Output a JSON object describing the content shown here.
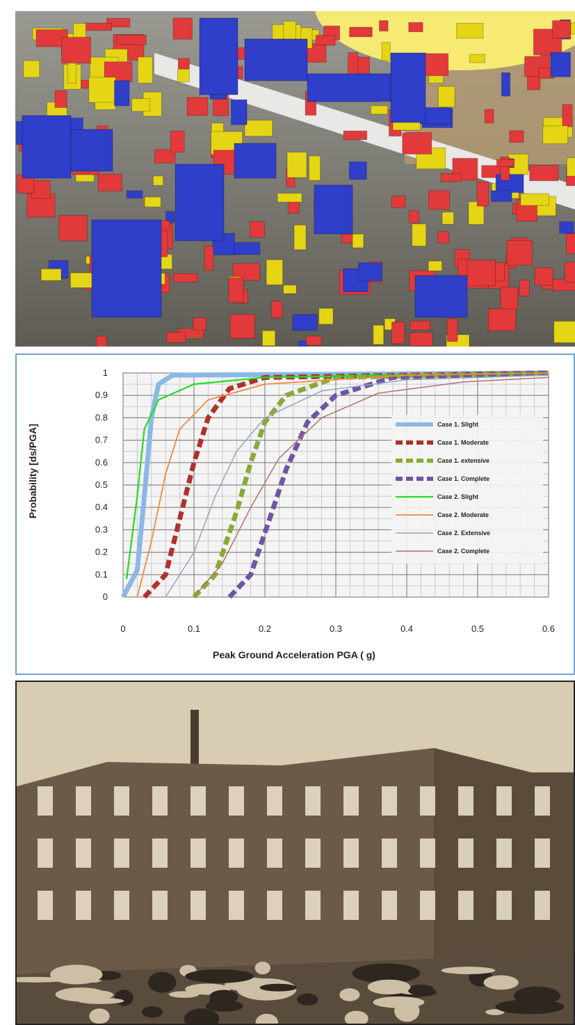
{
  "colors": {
    "building_low": "#e23a3a",
    "building_mid": "#e6d514",
    "building_high": "#2f3fc9",
    "sky_highlight": "#f6ea73",
    "chart_border": "#6fa1d6"
  },
  "chart_data": {
    "type": "line",
    "xlabel": "Peak Ground Acceleration PGA ( g)",
    "ylabel": "Probability  [ds/PGA]",
    "xlim": [
      0,
      0.6
    ],
    "ylim": [
      0,
      1
    ],
    "xticks": [
      "0",
      "0.1",
      "0.2",
      "0.3",
      "0.4",
      "0.5",
      "0.6"
    ],
    "yticks": [
      "0",
      "0.1",
      "0.2",
      "0.3",
      "0.4",
      "0.5",
      "0.6",
      "0.7",
      "0.8",
      "0.9",
      "1"
    ],
    "grid": true,
    "legend_position": "right",
    "series": [
      {
        "name": "Case 1. Slight",
        "color": "#8ab9e6",
        "dashed": false,
        "width": 7,
        "points": [
          [
            0,
            0
          ],
          [
            0.02,
            0.12
          ],
          [
            0.03,
            0.45
          ],
          [
            0.04,
            0.8
          ],
          [
            0.05,
            0.95
          ],
          [
            0.07,
            0.99
          ],
          [
            0.6,
            1
          ]
        ]
      },
      {
        "name": "Case 1. Moderate",
        "color": "#b0302c",
        "dashed": true,
        "width": 7,
        "points": [
          [
            0.03,
            0
          ],
          [
            0.06,
            0.1
          ],
          [
            0.08,
            0.35
          ],
          [
            0.1,
            0.6
          ],
          [
            0.12,
            0.8
          ],
          [
            0.15,
            0.93
          ],
          [
            0.2,
            0.98
          ],
          [
            0.6,
            1
          ]
        ]
      },
      {
        "name": "Case 1. extensive",
        "color": "#8aaa37",
        "dashed": true,
        "width": 7,
        "points": [
          [
            0.1,
            0
          ],
          [
            0.13,
            0.1
          ],
          [
            0.16,
            0.38
          ],
          [
            0.18,
            0.6
          ],
          [
            0.2,
            0.78
          ],
          [
            0.23,
            0.9
          ],
          [
            0.3,
            0.98
          ],
          [
            0.6,
            1
          ]
        ]
      },
      {
        "name": "Case 1. Complete",
        "color": "#6f55a6",
        "dashed": true,
        "width": 7,
        "points": [
          [
            0.15,
            0
          ],
          [
            0.18,
            0.1
          ],
          [
            0.21,
            0.38
          ],
          [
            0.23,
            0.57
          ],
          [
            0.26,
            0.78
          ],
          [
            0.3,
            0.9
          ],
          [
            0.38,
            0.98
          ],
          [
            0.6,
            1
          ]
        ]
      },
      {
        "name": "Case 2. Slight",
        "color": "#22dd22",
        "dashed": false,
        "width": 2.2,
        "points": [
          [
            0.005,
            0.08
          ],
          [
            0.02,
            0.45
          ],
          [
            0.03,
            0.75
          ],
          [
            0.05,
            0.88
          ],
          [
            0.1,
            0.95
          ],
          [
            0.2,
            0.98
          ],
          [
            0.6,
            1
          ]
        ]
      },
      {
        "name": "Case 2. Moderate",
        "color": "#f08a3c",
        "dashed": false,
        "width": 1.8,
        "points": [
          [
            0.02,
            0
          ],
          [
            0.04,
            0.25
          ],
          [
            0.06,
            0.55
          ],
          [
            0.08,
            0.75
          ],
          [
            0.12,
            0.88
          ],
          [
            0.2,
            0.95
          ],
          [
            0.4,
            0.99
          ],
          [
            0.6,
            1
          ]
        ]
      },
      {
        "name": "Case 2. Extensive",
        "color": "#8fa8bf",
        "dashed": false,
        "width": 1.5,
        "points": [
          [
            0.06,
            0
          ],
          [
            0.1,
            0.2
          ],
          [
            0.13,
            0.45
          ],
          [
            0.16,
            0.65
          ],
          [
            0.2,
            0.8
          ],
          [
            0.28,
            0.92
          ],
          [
            0.4,
            0.97
          ],
          [
            0.6,
            0.99
          ]
        ]
      },
      {
        "name": "Case 2. Complete",
        "color": "#b5716a",
        "dashed": false,
        "width": 1.5,
        "points": [
          [
            0.1,
            0
          ],
          [
            0.14,
            0.15
          ],
          [
            0.18,
            0.4
          ],
          [
            0.22,
            0.62
          ],
          [
            0.28,
            0.8
          ],
          [
            0.36,
            0.91
          ],
          [
            0.48,
            0.96
          ],
          [
            0.6,
            0.98
          ]
        ]
      }
    ]
  }
}
